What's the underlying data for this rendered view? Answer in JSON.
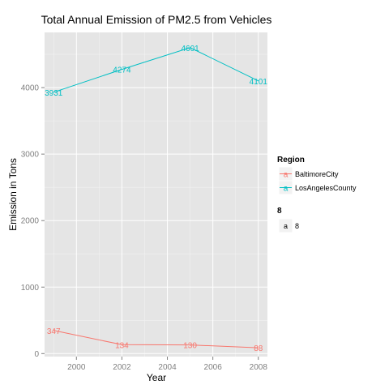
{
  "chart_data": {
    "type": "line",
    "title": "Total Annual Emission of PM2.5 from Vehicles",
    "xlabel": "Year",
    "ylabel": "Emission in Tons",
    "x": [
      1999,
      2002,
      2005,
      2008
    ],
    "xlim": [
      1998.6,
      2008.4
    ],
    "ylim": [
      -45,
      4830
    ],
    "xticks": [
      2000,
      2002,
      2004,
      2006,
      2008
    ],
    "yticks": [
      0,
      1000,
      2000,
      3000,
      4000
    ],
    "grid": true,
    "series": [
      {
        "name": "BaltimoreCity",
        "color": "#F8766D",
        "values": [
          347,
          134,
          130,
          88
        ]
      },
      {
        "name": "LosAngelesCounty",
        "color": "#00BFC4",
        "values": [
          3931,
          4274,
          4601,
          4101
        ]
      }
    ],
    "legend": {
      "title": "Region",
      "position": "right",
      "key_glyph": "a",
      "size_title": "8",
      "size_label": "8"
    }
  }
}
